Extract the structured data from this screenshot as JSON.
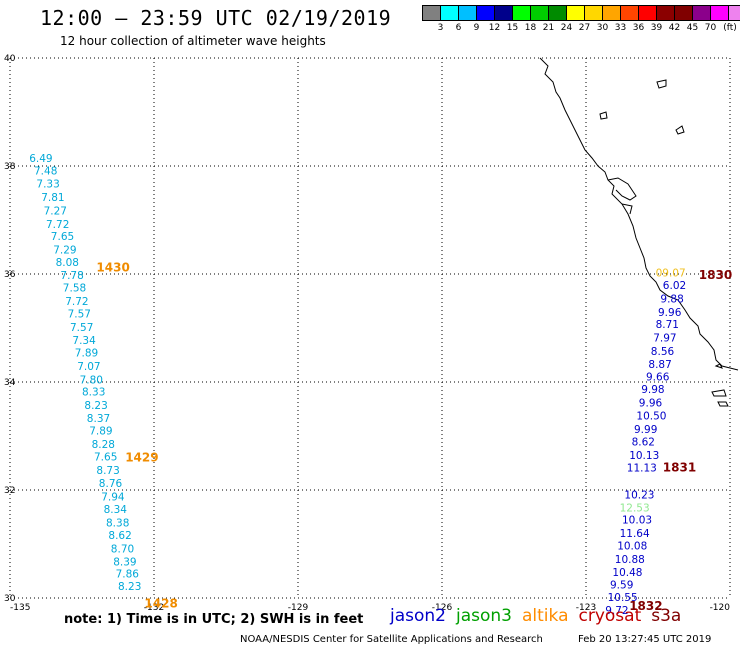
{
  "header": {
    "title": "12:00 — 23:59 UTC 02/19/2019",
    "subtitle": "12 hour collection of altimeter wave heights"
  },
  "legend": {
    "colors": [
      "#808080",
      "#00ffff",
      "#00bfff",
      "#0000ff",
      "#00008b",
      "#00ff00",
      "#00cd00",
      "#008b00",
      "#ffff00",
      "#ffd700",
      "#ffa500",
      "#ff4500",
      "#ff0000",
      "#8b0000",
      "#800000",
      "#8b008b",
      "#ff00ff",
      "#ee82ee",
      "#000000"
    ],
    "ticks": [
      "3",
      "6",
      "9",
      "12",
      "15",
      "18",
      "21",
      "24",
      "27",
      "30",
      "33",
      "36",
      "39",
      "42",
      "45",
      "70"
    ],
    "unit": "(ft)"
  },
  "map": {
    "lat_labels": [
      "40",
      "38",
      "36",
      "34",
      "32",
      "30"
    ],
    "lon_labels": [
      "-135",
      "-132",
      "-129",
      "-126",
      "-123",
      "-120"
    ]
  },
  "tracks": [
    {
      "satellite": "cryosat",
      "color": "#00a8d8",
      "values": [
        {
          "lat": 38.15,
          "lon": -134.6,
          "v": "6.49"
        },
        {
          "lat": 37.92,
          "lon": -134.5,
          "v": "7.48"
        },
        {
          "lat": 37.68,
          "lon": -134.45,
          "v": "7.33"
        },
        {
          "lat": 37.43,
          "lon": -134.35,
          "v": "7.81"
        },
        {
          "lat": 37.18,
          "lon": -134.3,
          "v": "7.27"
        },
        {
          "lat": 36.93,
          "lon": -134.25,
          "v": "7.72"
        },
        {
          "lat": 36.7,
          "lon": -134.15,
          "v": "7.65"
        },
        {
          "lat": 36.45,
          "lon": -134.1,
          "v": "7.29"
        },
        {
          "lat": 36.22,
          "lon": -134.05,
          "v": "8.08"
        },
        {
          "lat": 35.98,
          "lon": -133.95,
          "v": "7.78"
        },
        {
          "lat": 35.75,
          "lon": -133.9,
          "v": "7.58"
        },
        {
          "lat": 35.5,
          "lon": -133.85,
          "v": "7.72"
        },
        {
          "lat": 35.27,
          "lon": -133.8,
          "v": "7.57"
        },
        {
          "lat": 35.02,
          "lon": -133.75,
          "v": "7.57"
        },
        {
          "lat": 34.78,
          "lon": -133.7,
          "v": "7.34"
        },
        {
          "lat": 34.55,
          "lon": -133.65,
          "v": "7.89"
        },
        {
          "lat": 34.3,
          "lon": -133.6,
          "v": "7.07"
        },
        {
          "lat": 34.05,
          "lon": -133.55,
          "v": "7.80"
        },
        {
          "lat": 33.82,
          "lon": -133.5,
          "v": "8.33"
        },
        {
          "lat": 33.57,
          "lon": -133.45,
          "v": "8.23"
        },
        {
          "lat": 33.33,
          "lon": -133.4,
          "v": "8.37"
        },
        {
          "lat": 33.1,
          "lon": -133.35,
          "v": "7.89"
        },
        {
          "lat": 32.85,
          "lon": -133.3,
          "v": "8.28"
        },
        {
          "lat": 32.62,
          "lon": -133.25,
          "v": "7.65"
        },
        {
          "lat": 32.37,
          "lon": -133.2,
          "v": "8.73"
        },
        {
          "lat": 32.13,
          "lon": -133.15,
          "v": "8.76"
        },
        {
          "lat": 31.88,
          "lon": -133.1,
          "v": "7.94"
        },
        {
          "lat": 31.65,
          "lon": -133.05,
          "v": "8.34"
        },
        {
          "lat": 31.4,
          "lon": -133.0,
          "v": "8.38"
        },
        {
          "lat": 31.17,
          "lon": -132.95,
          "v": "8.62"
        },
        {
          "lat": 30.92,
          "lon": -132.9,
          "v": "8.70"
        },
        {
          "lat": 30.68,
          "lon": -132.85,
          "v": "8.39"
        },
        {
          "lat": 30.45,
          "lon": -132.8,
          "v": "7.86"
        },
        {
          "lat": 30.22,
          "lon": -132.75,
          "v": "8.23"
        }
      ]
    },
    {
      "satellite": "jason2",
      "color": "#0000c8",
      "values": [
        {
          "lat": 35.8,
          "lon": -121.4,
          "v": "6.02"
        },
        {
          "lat": 35.55,
          "lon": -121.45,
          "v": "9.88"
        },
        {
          "lat": 35.3,
          "lon": -121.5,
          "v": "9.96"
        },
        {
          "lat": 35.07,
          "lon": -121.55,
          "v": "8.71"
        },
        {
          "lat": 34.82,
          "lon": -121.6,
          "v": "7.97"
        },
        {
          "lat": 34.57,
          "lon": -121.65,
          "v": "8.56"
        },
        {
          "lat": 34.33,
          "lon": -121.7,
          "v": "8.87"
        },
        {
          "lat": 34.1,
          "lon": -121.75,
          "v": "9.66"
        },
        {
          "lat": 33.87,
          "lon": -121.85,
          "v": "9.98"
        },
        {
          "lat": 33.62,
          "lon": -121.9,
          "v": "9.96"
        },
        {
          "lat": 33.38,
          "lon": -121.95,
          "v": "10.50"
        },
        {
          "lat": 33.13,
          "lon": -122.0,
          "v": "9.99"
        },
        {
          "lat": 32.9,
          "lon": -122.05,
          "v": "8.62"
        },
        {
          "lat": 32.65,
          "lon": -122.1,
          "v": "10.13"
        },
        {
          "lat": 32.42,
          "lon": -122.15,
          "v": "11.13"
        },
        {
          "lat": 31.92,
          "lon": -122.2,
          "v": "10.23"
        },
        {
          "lat": 31.45,
          "lon": -122.25,
          "v": "10.03"
        },
        {
          "lat": 31.2,
          "lon": -122.3,
          "v": "11.64"
        },
        {
          "lat": 30.97,
          "lon": -122.35,
          "v": "10.08"
        },
        {
          "lat": 30.72,
          "lon": -122.4,
          "v": "10.88"
        },
        {
          "lat": 30.48,
          "lon": -122.45,
          "v": "10.48"
        },
        {
          "lat": 30.25,
          "lon": -122.5,
          "v": "9.59"
        },
        {
          "lat": 30.02,
          "lon": -122.55,
          "v": "10.55"
        },
        {
          "lat": 29.78,
          "lon": -122.6,
          "v": "9.72"
        }
      ]
    },
    {
      "satellite": "jason3",
      "color": "#90e890",
      "values": [
        {
          "lat": 31.68,
          "lon": -122.3,
          "v": "12.53"
        }
      ]
    },
    {
      "satellite": "altika",
      "color": "#f0c020",
      "values": [
        {
          "lat": 36.03,
          "lon": -121.55,
          "v": "09.07"
        }
      ]
    }
  ],
  "timestamps": [
    {
      "lat": 36.12,
      "lon": -133.2,
      "text": "1430",
      "color": "#f08c00"
    },
    {
      "lat": 32.6,
      "lon": -132.6,
      "text": "1429",
      "color": "#f08c00"
    },
    {
      "lat": 29.9,
      "lon": -132.2,
      "text": "1428",
      "color": "#f08c00"
    },
    {
      "lat": 35.98,
      "lon": -120.65,
      "text": "1830",
      "color": "#800000"
    },
    {
      "lat": 32.42,
      "lon": -121.4,
      "text": "1831",
      "color": "#800000"
    },
    {
      "lat": 29.85,
      "lon": -122.1,
      "text": "1832",
      "color": "#800000"
    }
  ],
  "footer": {
    "note": "note: 1) Time is in UTC; 2) SWH is in feet",
    "satellites": [
      {
        "name": "jason2",
        "color": "#0000c8"
      },
      {
        "name": "jason3",
        "color": "#00a000"
      },
      {
        "name": "altika",
        "color": "#ff8c00"
      },
      {
        "name": "cryosat",
        "color": "#c00000"
      },
      {
        "name": "s3a",
        "color": "#800000"
      }
    ],
    "credit": "NOAA/NESDIS Center for Satellite Applications and Research",
    "issued": "Feb 20 13:27:45 UTC 2019"
  }
}
